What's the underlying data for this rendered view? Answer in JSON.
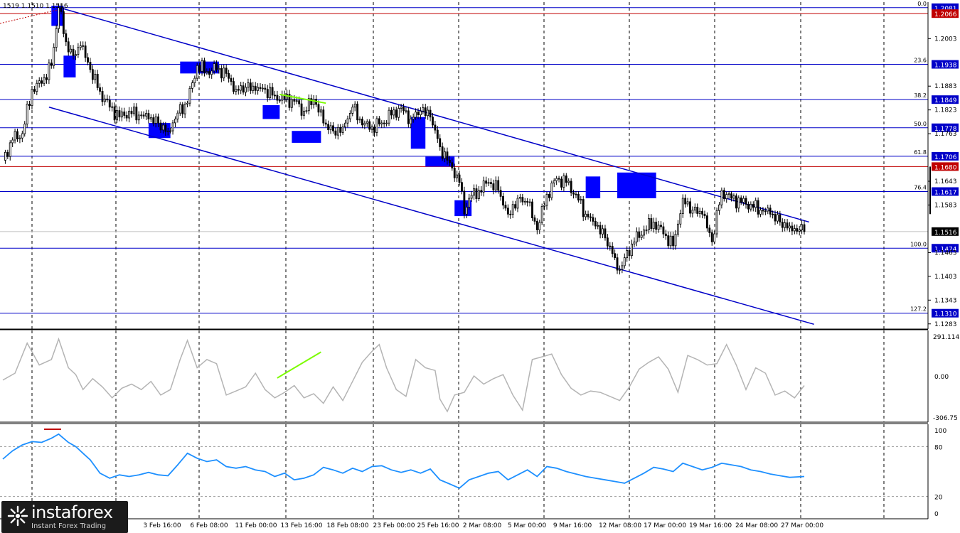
{
  "header": {
    "ohlc_text": "1519 1.1510 1.1516"
  },
  "price_axis": {
    "ticks": [
      {
        "value": 1.2003,
        "label": "1.2003"
      },
      {
        "value": 1.1883,
        "label": "1.1883"
      },
      {
        "value": 1.1823,
        "label": "1.1823"
      },
      {
        "value": 1.1763,
        "label": "1.1763"
      },
      {
        "value": 1.1643,
        "label": "1.1643"
      },
      {
        "value": 1.1583,
        "label": "1.1583"
      },
      {
        "value": 1.1463,
        "label": "1.1463"
      },
      {
        "value": 1.1403,
        "label": "1.1403"
      },
      {
        "value": 1.1343,
        "label": "1.1343"
      },
      {
        "value": 1.1283,
        "label": "1.1283"
      }
    ],
    "current_price": "1.1516"
  },
  "fib_levels": [
    {
      "pct": "0.0",
      "price": "1.2081"
    },
    {
      "pct": "23.6",
      "price": "1.1938"
    },
    {
      "pct": "38.2",
      "price": "1.1849"
    },
    {
      "pct": "50.0",
      "price": "1.1778"
    },
    {
      "pct": "61.8",
      "price": "1.1706"
    },
    {
      "pct": "76.4",
      "price": "1.1617"
    },
    {
      "pct": "100.0",
      "price": "1.1474"
    },
    {
      "pct": "127.2",
      "price": "1.1310"
    }
  ],
  "red_levels": [
    "1.2066",
    "1.1680"
  ],
  "x_labels": [
    "3 Feb 16:00",
    "6 Feb 08:00",
    "11 Feb 00:00",
    "13 Feb 16:00",
    "18 Feb 08:00",
    "23 Feb 00:00",
    "25 Feb 16:00",
    "2 Mar 08:00",
    "5 Mar 00:00",
    "9 Mar 16:00",
    "12 Mar 08:00",
    "17 Mar 00:00",
    "19 Mar 16:00",
    "24 Mar 08:00",
    "27 Mar 00:00"
  ],
  "cci_axis": {
    "top": "291.1145",
    "zero": "0.00",
    "bottom": "-306.75"
  },
  "rsi_axis": [
    "100",
    "80",
    "20",
    "0"
  ],
  "logo": {
    "name": "instaforex",
    "tagline": "Instant Forex Trading"
  },
  "colors": {
    "candle": "#000000",
    "fib_line": "#0000c8",
    "red_line": "#c00000",
    "channel": "#0000c8",
    "marker": "#0000ff",
    "cci": "#b4b4b4",
    "rsi": "#1e90ff",
    "divergence": "#7cfc00"
  },
  "chart_data": {
    "type": "candlestick",
    "instrument": "",
    "price_range": [
      1.127,
      1.2095
    ],
    "anchor_closes": [
      [
        0,
        1.1696
      ],
      [
        4,
        1.1747
      ],
      [
        8,
        1.1763
      ],
      [
        12,
        1.1875
      ],
      [
        16,
        1.189
      ],
      [
        20,
        1.1935
      ],
      [
        23,
        1.2081
      ],
      [
        26,
        1.1995
      ],
      [
        29,
        1.196
      ],
      [
        32,
        1.1985
      ],
      [
        36,
        1.1925
      ],
      [
        40,
        1.187
      ],
      [
        44,
        1.183
      ],
      [
        48,
        1.1805
      ],
      [
        52,
        1.182
      ],
      [
        56,
        1.181
      ],
      [
        60,
        1.18
      ],
      [
        64,
        1.179
      ],
      [
        68,
        1.177
      ],
      [
        72,
        1.1815
      ],
      [
        76,
        1.184
      ],
      [
        80,
        1.1935
      ],
      [
        84,
        1.192
      ],
      [
        88,
        1.1925
      ],
      [
        92,
        1.1915
      ],
      [
        96,
        1.1875
      ],
      [
        100,
        1.188
      ],
      [
        104,
        1.1872
      ],
      [
        108,
        1.1875
      ],
      [
        112,
        1.186
      ],
      [
        116,
        1.185
      ],
      [
        120,
        1.1845
      ],
      [
        124,
        1.182
      ],
      [
        128,
        1.185
      ],
      [
        132,
        1.179
      ],
      [
        136,
        1.177
      ],
      [
        140,
        1.178
      ],
      [
        144,
        1.183
      ],
      [
        148,
        1.1785
      ],
      [
        152,
        1.178
      ],
      [
        156,
        1.179
      ],
      [
        160,
        1.181
      ],
      [
        164,
        1.183
      ],
      [
        168,
        1.18
      ],
      [
        172,
        1.182
      ],
      [
        176,
        1.1805
      ],
      [
        180,
        1.173
      ],
      [
        184,
        1.169
      ],
      [
        188,
        1.164
      ],
      [
        190,
        1.156
      ],
      [
        192,
        1.16
      ],
      [
        196,
        1.162
      ],
      [
        200,
        1.164
      ],
      [
        204,
        1.162
      ],
      [
        208,
        1.156
      ],
      [
        212,
        1.16
      ],
      [
        216,
        1.159
      ],
      [
        220,
        1.152
      ],
      [
        224,
        1.161
      ],
      [
        228,
        1.165
      ],
      [
        232,
        1.164
      ],
      [
        236,
        1.161
      ],
      [
        240,
        1.156
      ],
      [
        244,
        1.153
      ],
      [
        248,
        1.15
      ],
      [
        252,
        1.145
      ],
      [
        254,
        1.142
      ],
      [
        256,
        1.145
      ],
      [
        260,
        1.149
      ],
      [
        264,
        1.152
      ],
      [
        268,
        1.154
      ],
      [
        272,
        1.151
      ],
      [
        276,
        1.148
      ],
      [
        280,
        1.16
      ],
      [
        284,
        1.157
      ],
      [
        288,
        1.156
      ],
      [
        292,
        1.149
      ],
      [
        296,
        1.162
      ],
      [
        300,
        1.16
      ],
      [
        304,
        1.159
      ],
      [
        308,
        1.1585
      ],
      [
        312,
        1.157
      ],
      [
        316,
        1.156
      ],
      [
        320,
        1.154
      ],
      [
        324,
        1.153
      ],
      [
        328,
        1.152
      ],
      [
        330,
        1.1516
      ]
    ],
    "cci_range": [
      -306.75,
      291.1145
    ],
    "cci_points": [
      [
        0,
        -30
      ],
      [
        5,
        20
      ],
      [
        10,
        240
      ],
      [
        15,
        80
      ],
      [
        20,
        120
      ],
      [
        23,
        270
      ],
      [
        27,
        60
      ],
      [
        30,
        10
      ],
      [
        33,
        -100
      ],
      [
        37,
        -20
      ],
      [
        41,
        -80
      ],
      [
        45,
        -160
      ],
      [
        49,
        -90
      ],
      [
        53,
        -60
      ],
      [
        57,
        -100
      ],
      [
        61,
        -40
      ],
      [
        65,
        -140
      ],
      [
        69,
        -100
      ],
      [
        73,
        120
      ],
      [
        76,
        260
      ],
      [
        80,
        60
      ],
      [
        84,
        120
      ],
      [
        88,
        90
      ],
      [
        92,
        -140
      ],
      [
        96,
        -110
      ],
      [
        100,
        -80
      ],
      [
        104,
        20
      ],
      [
        108,
        -100
      ],
      [
        112,
        -160
      ],
      [
        116,
        -120
      ],
      [
        120,
        -70
      ],
      [
        124,
        -160
      ],
      [
        128,
        -130
      ],
      [
        132,
        -200
      ],
      [
        136,
        -80
      ],
      [
        140,
        -180
      ],
      [
        144,
        -40
      ],
      [
        148,
        100
      ],
      [
        152,
        180
      ],
      [
        155,
        230
      ],
      [
        158,
        60
      ],
      [
        162,
        -100
      ],
      [
        166,
        -150
      ],
      [
        170,
        120
      ],
      [
        174,
        60
      ],
      [
        178,
        40
      ],
      [
        180,
        -170
      ],
      [
        183,
        -260
      ],
      [
        186,
        -140
      ],
      [
        190,
        -120
      ],
      [
        194,
        0
      ],
      [
        198,
        -60
      ],
      [
        202,
        -20
      ],
      [
        206,
        10
      ],
      [
        210,
        -140
      ],
      [
        214,
        -250
      ],
      [
        218,
        120
      ],
      [
        222,
        140
      ],
      [
        226,
        160
      ],
      [
        230,
        10
      ],
      [
        234,
        -90
      ],
      [
        238,
        -140
      ],
      [
        242,
        -110
      ],
      [
        246,
        -120
      ],
      [
        250,
        -150
      ],
      [
        254,
        -180
      ],
      [
        258,
        -80
      ],
      [
        262,
        50
      ],
      [
        266,
        100
      ],
      [
        270,
        140
      ],
      [
        274,
        50
      ],
      [
        278,
        -120
      ],
      [
        282,
        150
      ],
      [
        286,
        120
      ],
      [
        290,
        80
      ],
      [
        294,
        90
      ],
      [
        298,
        230
      ],
      [
        302,
        80
      ],
      [
        306,
        -100
      ],
      [
        310,
        60
      ],
      [
        314,
        20
      ],
      [
        318,
        -140
      ],
      [
        322,
        -110
      ],
      [
        326,
        -160
      ],
      [
        330,
        -70
      ]
    ],
    "rsi_range": [
      0,
      100
    ],
    "rsi_points": [
      [
        0,
        65
      ],
      [
        4,
        75
      ],
      [
        8,
        82
      ],
      [
        12,
        86
      ],
      [
        16,
        85
      ],
      [
        20,
        90
      ],
      [
        23,
        95
      ],
      [
        27,
        85
      ],
      [
        30,
        80
      ],
      [
        33,
        72
      ],
      [
        36,
        64
      ],
      [
        40,
        48
      ],
      [
        44,
        42
      ],
      [
        48,
        46
      ],
      [
        52,
        44
      ],
      [
        56,
        46
      ],
      [
        60,
        49
      ],
      [
        64,
        46
      ],
      [
        68,
        45
      ],
      [
        72,
        58
      ],
      [
        76,
        72
      ],
      [
        80,
        66
      ],
      [
        84,
        62
      ],
      [
        88,
        64
      ],
      [
        92,
        56
      ],
      [
        96,
        54
      ],
      [
        100,
        56
      ],
      [
        104,
        52
      ],
      [
        108,
        50
      ],
      [
        112,
        44
      ],
      [
        116,
        48
      ],
      [
        120,
        40
      ],
      [
        124,
        42
      ],
      [
        128,
        46
      ],
      [
        132,
        55
      ],
      [
        136,
        52
      ],
      [
        140,
        48
      ],
      [
        144,
        54
      ],
      [
        148,
        50
      ],
      [
        152,
        56
      ],
      [
        156,
        57
      ],
      [
        160,
        52
      ],
      [
        164,
        49
      ],
      [
        168,
        52
      ],
      [
        172,
        48
      ],
      [
        176,
        53
      ],
      [
        180,
        40
      ],
      [
        184,
        35
      ],
      [
        188,
        30
      ],
      [
        192,
        40
      ],
      [
        196,
        44
      ],
      [
        200,
        48
      ],
      [
        204,
        50
      ],
      [
        208,
        40
      ],
      [
        212,
        46
      ],
      [
        216,
        52
      ],
      [
        220,
        44
      ],
      [
        224,
        56
      ],
      [
        228,
        54
      ],
      [
        232,
        50
      ],
      [
        236,
        47
      ],
      [
        240,
        44
      ],
      [
        244,
        42
      ],
      [
        248,
        40
      ],
      [
        252,
        38
      ],
      [
        256,
        36
      ],
      [
        260,
        42
      ],
      [
        264,
        48
      ],
      [
        268,
        55
      ],
      [
        272,
        53
      ],
      [
        276,
        50
      ],
      [
        280,
        60
      ],
      [
        284,
        56
      ],
      [
        288,
        52
      ],
      [
        292,
        55
      ],
      [
        296,
        60
      ],
      [
        300,
        58
      ],
      [
        304,
        56
      ],
      [
        308,
        52
      ],
      [
        312,
        50
      ],
      [
        316,
        47
      ],
      [
        320,
        45
      ],
      [
        324,
        43
      ],
      [
        330,
        44
      ]
    ],
    "rsi_guides": [
      80,
      20
    ],
    "rsi_overbought_mark": [
      17,
      24
    ],
    "channel_lines": [
      {
        "from": [
          24,
          1.208
        ],
        "to": [
          332,
          1.154
        ]
      },
      {
        "from": [
          19,
          1.183
        ],
        "to": [
          334,
          1.1282
        ]
      }
    ],
    "markers": [
      {
        "from": 20,
        "to": 25,
        "high": 1.2086,
        "low": 1.2035
      },
      {
        "from": 25,
        "to": 30,
        "high": 1.196,
        "low": 1.1905
      },
      {
        "from": 60,
        "to": 69,
        "high": 1.179,
        "low": 1.1752
      },
      {
        "from": 73,
        "to": 89,
        "high": 1.1945,
        "low": 1.1915
      },
      {
        "from": 107,
        "to": 114,
        "high": 1.1835,
        "low": 1.18
      },
      {
        "from": 119,
        "to": 131,
        "high": 1.177,
        "low": 1.174
      },
      {
        "from": 168,
        "to": 174,
        "high": 1.1805,
        "low": 1.1725
      },
      {
        "from": 174,
        "to": 186,
        "high": 1.1705,
        "low": 1.168
      },
      {
        "from": 186,
        "to": 193,
        "high": 1.1595,
        "low": 1.1555
      },
      {
        "from": 240,
        "to": 246,
        "high": 1.1655,
        "low": 1.16
      },
      {
        "from": 253,
        "to": 269,
        "high": 1.1665,
        "low": 1.16
      }
    ],
    "divergence_price": {
      "from": [
        114,
        1.1862
      ],
      "to": [
        133,
        1.184
      ]
    },
    "divergence_cci": {
      "from": [
        113,
        -15
      ],
      "to": [
        131,
        175
      ]
    }
  }
}
